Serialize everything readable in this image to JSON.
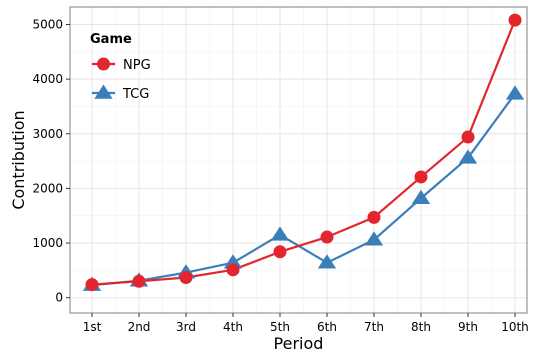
{
  "chart_data": {
    "type": "line",
    "xlabel": "Period",
    "ylabel": "Contribution",
    "categories": [
      "1st",
      "2nd",
      "3rd",
      "4th",
      "5th",
      "6th",
      "7th",
      "8th",
      "9th",
      "10th"
    ],
    "ylim": [
      -280,
      5320
    ],
    "yticks": [
      0,
      1000,
      2000,
      3000,
      4000,
      5000
    ],
    "grid": true,
    "legend": {
      "title": "Game",
      "placement": "top-left"
    },
    "series": [
      {
        "name": "NPG",
        "color": "#e3262d",
        "marker": "circle",
        "values": [
          240,
          300,
          370,
          510,
          840,
          1110,
          1470,
          2210,
          2940,
          5080
        ]
      },
      {
        "name": "TCG",
        "color": "#3b7eb8",
        "marker": "triangle",
        "values": [
          230,
          310,
          460,
          640,
          1150,
          640,
          1060,
          1820,
          2560,
          3730
        ]
      }
    ]
  }
}
